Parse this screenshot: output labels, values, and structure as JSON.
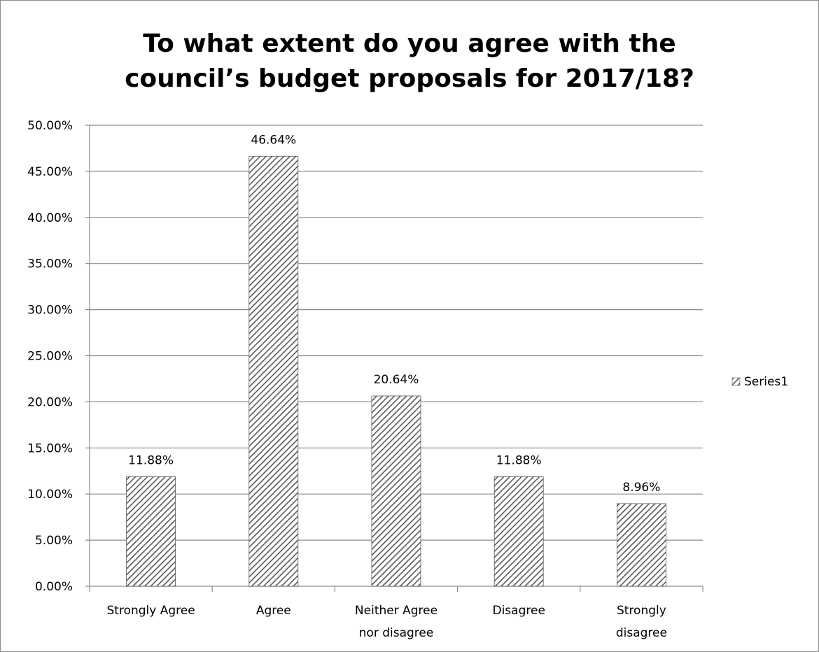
{
  "chart_data": {
    "type": "bar",
    "title": [
      "To what extent do you agree with the",
      "council’s budget proposals for 2017/18?"
    ],
    "categories": [
      [
        "Strongly Agree"
      ],
      [
        "Agree"
      ],
      [
        "Neither Agree",
        "nor disagree"
      ],
      [
        "Disagree"
      ],
      [
        "Strongly",
        "disagree"
      ]
    ],
    "series": [
      {
        "name": "Series1",
        "values": [
          11.88,
          46.64,
          20.64,
          11.88,
          8.96
        ],
        "value_labels": [
          "11.88%",
          "46.64%",
          "20.64%",
          "11.88%",
          "8.96%"
        ]
      }
    ],
    "ylim": [
      0,
      50
    ],
    "yticks": [
      0,
      5,
      10,
      15,
      20,
      25,
      30,
      35,
      40,
      45,
      50
    ],
    "ytick_labels": [
      "0.00%",
      "5.00%",
      "10.00%",
      "15.00%",
      "20.00%",
      "25.00%",
      "30.00%",
      "35.00%",
      "40.00%",
      "45.00%",
      "50.00%"
    ],
    "grid": true,
    "legend": "right",
    "bar_fill": "diagonal-hatch",
    "colors": {
      "bar_stroke": "#595959",
      "hatch": "#595959",
      "grid": "#8c8c8c",
      "axis": "#8c8c8c"
    }
  }
}
